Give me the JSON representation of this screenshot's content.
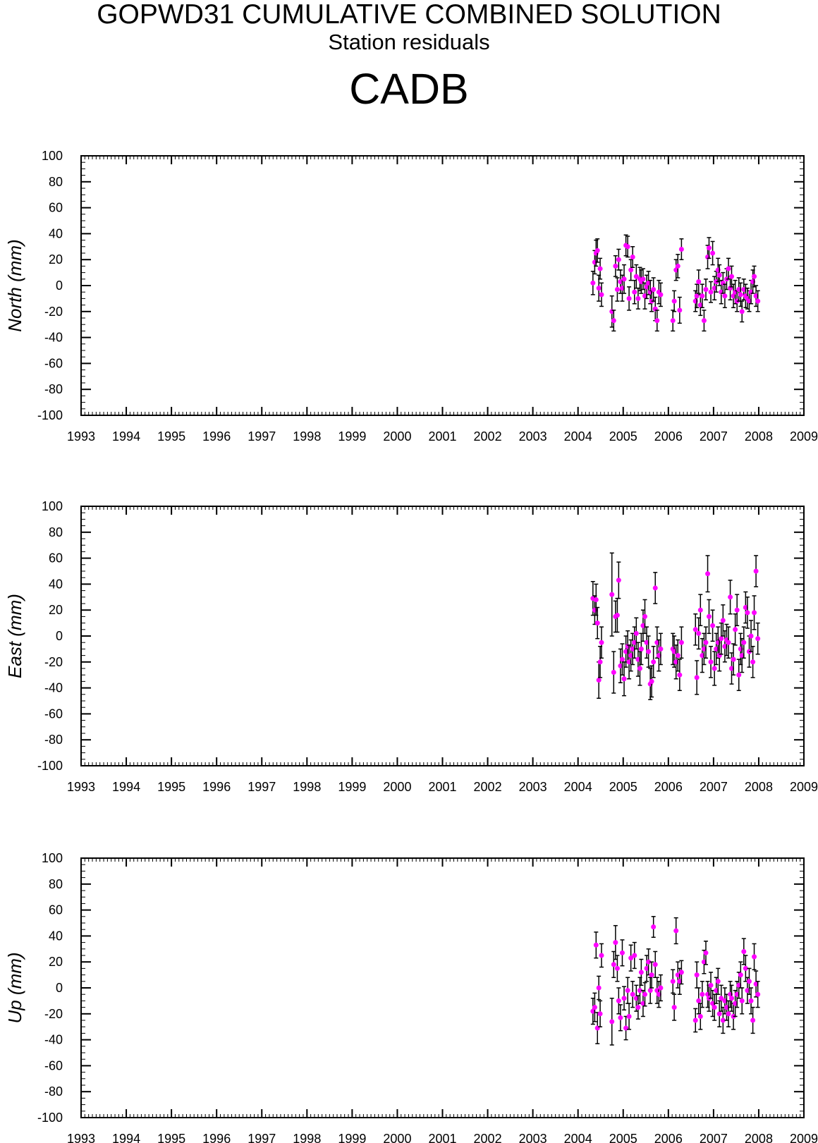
{
  "header": {
    "title": "GOPWD31 CUMULATIVE COMBINED SOLUTION",
    "subtitle": "Station residuals",
    "station": "CADB"
  },
  "colors": {
    "marker": "#ff00ff",
    "errorbar": "#000000",
    "axis": "#000000"
  },
  "chart_data": [
    {
      "type": "scatter",
      "ylabel": "North (mm)",
      "ylim": [
        -100,
        100
      ],
      "xlim": [
        1993,
        2009
      ],
      "x_ticks": [
        "1993",
        "1994",
        "1995",
        "1996",
        "1997",
        "1998",
        "1999",
        "2000",
        "2001",
        "2002",
        "2003",
        "2004",
        "2005",
        "2006",
        "2007",
        "2008",
        "2009"
      ],
      "y_ticks": [
        "100",
        "80",
        "60",
        "40",
        "20",
        "0",
        "-20",
        "-40",
        "-60",
        "-80",
        "-100"
      ],
      "x": [
        2004.33,
        2004.37,
        2004.4,
        2004.43,
        2004.46,
        2004.49,
        2004.52,
        2004.75,
        2004.79,
        2004.83,
        2004.87,
        2004.9,
        2004.94,
        2004.98,
        2005.02,
        2005.06,
        2005.1,
        2005.13,
        2005.17,
        2005.21,
        2005.25,
        2005.29,
        2005.33,
        2005.37,
        2005.4,
        2005.44,
        2005.48,
        2005.52,
        2005.56,
        2005.6,
        2005.63,
        2005.67,
        2005.71,
        2005.75,
        2005.79,
        2005.83,
        2006.1,
        2006.13,
        2006.17,
        2006.21,
        2006.25,
        2006.29,
        2006.6,
        2006.63,
        2006.67,
        2006.71,
        2006.75,
        2006.79,
        2006.83,
        2006.87,
        2006.9,
        2006.94,
        2006.98,
        2007.02,
        2007.06,
        2007.1,
        2007.13,
        2007.17,
        2007.21,
        2007.25,
        2007.29,
        2007.33,
        2007.37,
        2007.4,
        2007.44,
        2007.48,
        2007.52,
        2007.56,
        2007.6,
        2007.63,
        2007.67,
        2007.71,
        2007.75,
        2007.79,
        2007.83,
        2007.87,
        2007.9,
        2007.94,
        2007.98
      ],
      "y": [
        2,
        18,
        25,
        27,
        -2,
        13,
        -7,
        -20,
        -27,
        15,
        -3,
        20,
        3,
        -2,
        5,
        31,
        30,
        -10,
        12,
        22,
        -5,
        7,
        -10,
        5,
        3,
        5,
        -8,
        -1,
        2,
        -5,
        -12,
        -3,
        -18,
        -27,
        -5,
        -7,
        -27,
        -12,
        12,
        15,
        -19,
        28,
        -12,
        -8,
        3,
        -15,
        -8,
        -27,
        -3,
        22,
        29,
        -5,
        25,
        -2,
        3,
        12,
        8,
        -5,
        2,
        -8,
        5,
        13,
        -2,
        7,
        -8,
        -5,
        -12,
        -3,
        -7,
        -20,
        -3,
        -8,
        -10,
        -12,
        -5,
        3,
        7,
        -8,
        -12
      ],
      "err": [
        9,
        9,
        10,
        9,
        10,
        8,
        9,
        12,
        8,
        8,
        9,
        8,
        9,
        10,
        11,
        8,
        8,
        9,
        8,
        8,
        9,
        9,
        8,
        9,
        9,
        8,
        10,
        9,
        9,
        9,
        8,
        9,
        9,
        8,
        9,
        9,
        8,
        8,
        8,
        9,
        10,
        8,
        8,
        9,
        9,
        8,
        9,
        8,
        8,
        9,
        8,
        8,
        9,
        9,
        8,
        9,
        8,
        9,
        8,
        9,
        8,
        8,
        9,
        8,
        9,
        9,
        8,
        9,
        9,
        8,
        8,
        9,
        8,
        8,
        9,
        9,
        8,
        8,
        8
      ]
    },
    {
      "type": "scatter",
      "ylabel": "East (mm)",
      "ylim": [
        -100,
        100
      ],
      "xlim": [
        1993,
        2009
      ],
      "x_ticks": [
        "1993",
        "1994",
        "1995",
        "1996",
        "1997",
        "1998",
        "1999",
        "2000",
        "2001",
        "2002",
        "2003",
        "2004",
        "2005",
        "2006",
        "2007",
        "2008",
        "2009"
      ],
      "y_ticks": [
        "100",
        "80",
        "60",
        "40",
        "20",
        "0",
        "-20",
        "-40",
        "-60",
        "-80",
        "-100"
      ],
      "x": [
        2004.33,
        2004.37,
        2004.4,
        2004.43,
        2004.46,
        2004.49,
        2004.52,
        2004.75,
        2004.79,
        2004.83,
        2004.87,
        2004.9,
        2004.94,
        2004.98,
        2005.02,
        2005.06,
        2005.1,
        2005.13,
        2005.17,
        2005.21,
        2005.25,
        2005.29,
        2005.33,
        2005.37,
        2005.4,
        2005.44,
        2005.48,
        2005.52,
        2005.56,
        2005.6,
        2005.63,
        2005.67,
        2005.71,
        2005.75,
        2005.79,
        2005.83,
        2006.1,
        2006.13,
        2006.17,
        2006.21,
        2006.25,
        2006.29,
        2006.6,
        2006.63,
        2006.67,
        2006.71,
        2006.75,
        2006.79,
        2006.83,
        2006.87,
        2006.9,
        2006.94,
        2006.98,
        2007.02,
        2007.06,
        2007.1,
        2007.13,
        2007.17,
        2007.21,
        2007.25,
        2007.29,
        2007.33,
        2007.37,
        2007.4,
        2007.44,
        2007.48,
        2007.52,
        2007.56,
        2007.6,
        2007.63,
        2007.67,
        2007.71,
        2007.75,
        2007.79,
        2007.83,
        2007.87,
        2007.9,
        2007.94,
        2007.98
      ],
      "y": [
        29,
        20,
        28,
        10,
        -34,
        -20,
        -5,
        32,
        -28,
        15,
        16,
        43,
        -23,
        -18,
        -33,
        -12,
        -8,
        -20,
        -15,
        -10,
        -5,
        2,
        -18,
        -25,
        -10,
        8,
        15,
        -5,
        -12,
        -37,
        -35,
        -20,
        37,
        -5,
        -15,
        -10,
        -10,
        -12,
        -20,
        -15,
        -30,
        -5,
        5,
        -32,
        2,
        20,
        -15,
        -10,
        -5,
        48,
        15,
        -20,
        8,
        -25,
        -10,
        -5,
        -15,
        -2,
        12,
        -8,
        -3,
        -5,
        30,
        -25,
        -18,
        5,
        20,
        -30,
        -10,
        -15,
        -5,
        22,
        18,
        -12,
        0,
        -20,
        18,
        50,
        -2
      ],
      "err": [
        13,
        11,
        12,
        12,
        14,
        12,
        12,
        32,
        16,
        12,
        13,
        14,
        13,
        12,
        13,
        12,
        12,
        13,
        12,
        12,
        12,
        12,
        13,
        13,
        12,
        12,
        13,
        12,
        12,
        12,
        12,
        12,
        12,
        12,
        12,
        12,
        12,
        12,
        13,
        12,
        12,
        12,
        12,
        13,
        12,
        12,
        13,
        12,
        12,
        14,
        13,
        12,
        12,
        13,
        12,
        12,
        12,
        12,
        12,
        12,
        12,
        12,
        13,
        12,
        12,
        12,
        12,
        12,
        12,
        13,
        12,
        12,
        12,
        12,
        12,
        12,
        13,
        12,
        12
      ]
    },
    {
      "type": "scatter",
      "ylabel": "Up (mm)",
      "ylim": [
        -100,
        100
      ],
      "xlim": [
        1993,
        2009
      ],
      "x_ticks": [
        "1993",
        "1994",
        "1995",
        "1996",
        "1997",
        "1998",
        "1999",
        "2000",
        "2001",
        "2002",
        "2003",
        "2004",
        "2005",
        "2006",
        "2007",
        "2008",
        "2009"
      ],
      "y_ticks": [
        "100",
        "80",
        "60",
        "40",
        "20",
        "0",
        "-20",
        "-40",
        "-60",
        "-80",
        "-100"
      ],
      "x": [
        2004.33,
        2004.37,
        2004.4,
        2004.43,
        2004.46,
        2004.49,
        2004.52,
        2004.75,
        2004.79,
        2004.83,
        2004.87,
        2004.9,
        2004.94,
        2004.98,
        2005.02,
        2005.06,
        2005.1,
        2005.13,
        2005.17,
        2005.21,
        2005.25,
        2005.29,
        2005.33,
        2005.37,
        2005.4,
        2005.44,
        2005.48,
        2005.52,
        2005.56,
        2005.6,
        2005.63,
        2005.67,
        2005.71,
        2005.75,
        2005.79,
        2005.83,
        2006.1,
        2006.13,
        2006.17,
        2006.21,
        2006.25,
        2006.29,
        2006.6,
        2006.63,
        2006.67,
        2006.71,
        2006.75,
        2006.79,
        2006.83,
        2006.87,
        2006.9,
        2006.94,
        2006.98,
        2007.02,
        2007.06,
        2007.1,
        2007.13,
        2007.17,
        2007.21,
        2007.25,
        2007.29,
        2007.33,
        2007.37,
        2007.4,
        2007.44,
        2007.48,
        2007.52,
        2007.56,
        2007.6,
        2007.63,
        2007.67,
        2007.71,
        2007.75,
        2007.79,
        2007.83,
        2007.87,
        2007.9,
        2007.94,
        2007.98
      ],
      "y": [
        -18,
        -15,
        33,
        -31,
        0,
        -20,
        25,
        -26,
        18,
        35,
        15,
        -10,
        -23,
        27,
        -8,
        -31,
        -2,
        -22,
        23,
        -5,
        25,
        -8,
        -15,
        -2,
        12,
        -12,
        -5,
        15,
        20,
        -2,
        10,
        47,
        18,
        -2,
        -5,
        0,
        5,
        -15,
        44,
        10,
        5,
        12,
        -25,
        10,
        -10,
        -22,
        -5,
        20,
        27,
        -5,
        -8,
        2,
        -12,
        -15,
        -2,
        5,
        -20,
        -8,
        -25,
        -10,
        -15,
        -20,
        -5,
        -8,
        -22,
        -12,
        -5,
        2,
        10,
        -10,
        28,
        15,
        -2,
        5,
        -10,
        -25,
        24,
        3,
        -5
      ],
      "err": [
        10,
        11,
        10,
        12,
        9,
        10,
        9,
        18,
        10,
        13,
        10,
        10,
        10,
        10,
        9,
        9,
        10,
        10,
        10,
        10,
        10,
        10,
        9,
        10,
        10,
        10,
        9,
        10,
        10,
        10,
        10,
        8,
        10,
        10,
        10,
        10,
        9,
        10,
        10,
        10,
        10,
        9,
        9,
        10,
        10,
        10,
        10,
        9,
        9,
        10,
        10,
        10,
        10,
        10,
        10,
        10,
        10,
        10,
        10,
        10,
        10,
        10,
        10,
        10,
        10,
        10,
        10,
        10,
        10,
        10,
        10,
        10,
        10,
        10,
        10,
        10,
        10,
        10,
        10
      ]
    }
  ]
}
